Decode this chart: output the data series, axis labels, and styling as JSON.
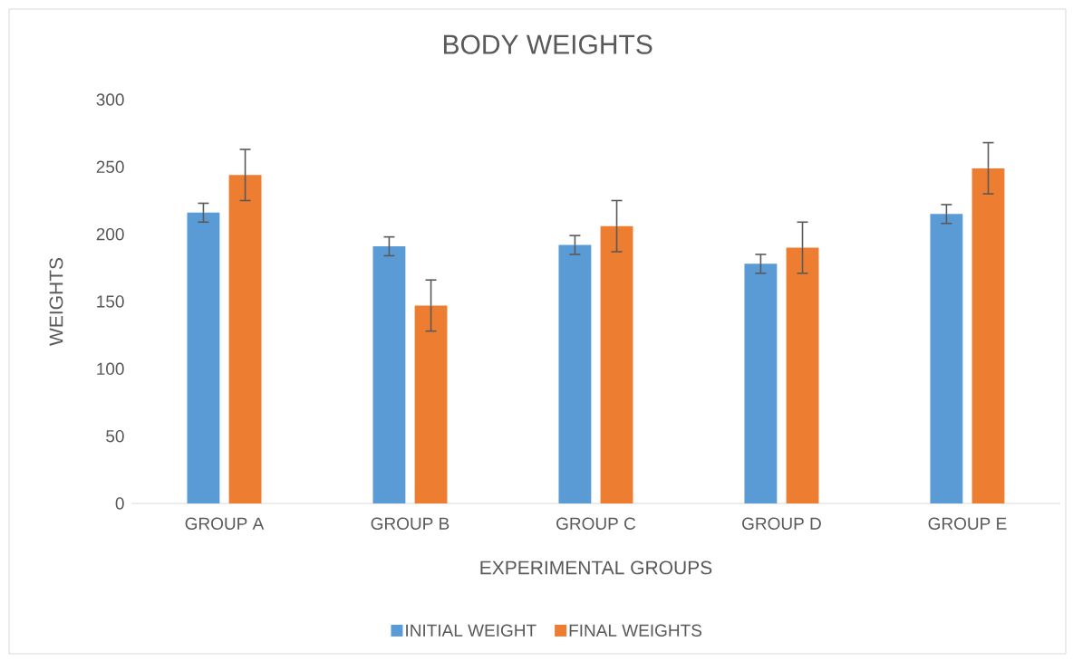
{
  "chart_data": {
    "type": "bar",
    "title": "BODY WEIGHTS",
    "xlabel": "EXPERIMENTAL GROUPS",
    "ylabel": "WEIGHTS",
    "categories": [
      "GROUP A",
      "GROUP B",
      "GROUP C",
      "GROUP D",
      "GROUP E"
    ],
    "series": [
      {
        "name": "INITIAL WEIGHT",
        "color": "#5b9bd5",
        "values": [
          216,
          191,
          192,
          178,
          215
        ],
        "errors": [
          7,
          7,
          7,
          7,
          7
        ]
      },
      {
        "name": "FINAL WEIGHTS",
        "color": "#ed7d31",
        "values": [
          244,
          147,
          206,
          190,
          249
        ],
        "errors": [
          19,
          19,
          19,
          19,
          19
        ]
      }
    ],
    "ylim": [
      0,
      300
    ],
    "yticks": [
      0,
      50,
      100,
      150,
      200,
      250,
      300
    ],
    "grid": false,
    "legend": "bottom"
  }
}
